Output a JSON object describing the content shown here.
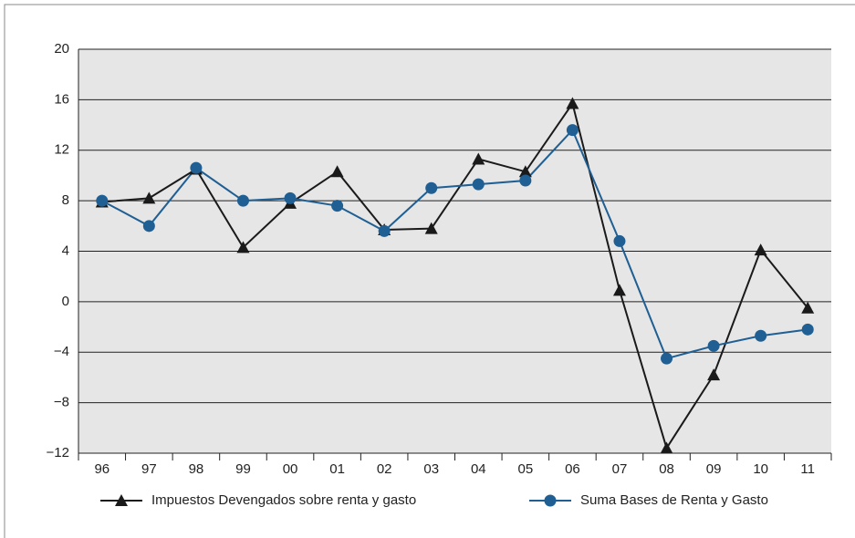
{
  "chart_data": {
    "type": "line",
    "categories": [
      "96",
      "97",
      "98",
      "99",
      "00",
      "01",
      "02",
      "03",
      "04",
      "05",
      "06",
      "07",
      "08",
      "09",
      "10",
      "11"
    ],
    "series": [
      {
        "name": "Impuestos Devengados sobre renta y gasto",
        "color": "#1a1a1a",
        "marker": "triangle",
        "values": [
          7.9,
          8.2,
          10.5,
          4.3,
          7.8,
          10.3,
          5.7,
          5.8,
          11.3,
          10.3,
          15.7,
          0.9,
          -11.6,
          -5.8,
          4.1,
          -0.5
        ]
      },
      {
        "name": "Suma Bases de Renta y Gasto",
        "color": "#1f5f93",
        "marker": "circle",
        "values": [
          8.0,
          6.0,
          10.6,
          8.0,
          8.2,
          7.6,
          5.6,
          9.0,
          9.3,
          9.6,
          13.6,
          4.8,
          -4.5,
          -3.5,
          -2.7,
          -2.2
        ]
      }
    ],
    "ylim": [
      -12,
      20
    ],
    "yticks": [
      {
        "value": -12,
        "label": "−12"
      },
      {
        "value": -8,
        "label": "−8"
      },
      {
        "value": -4,
        "label": "−4"
      },
      0,
      4,
      8,
      12,
      16,
      20
    ],
    "grid": true,
    "plot_background": "#e6e6e6",
    "legend": "bottom"
  }
}
